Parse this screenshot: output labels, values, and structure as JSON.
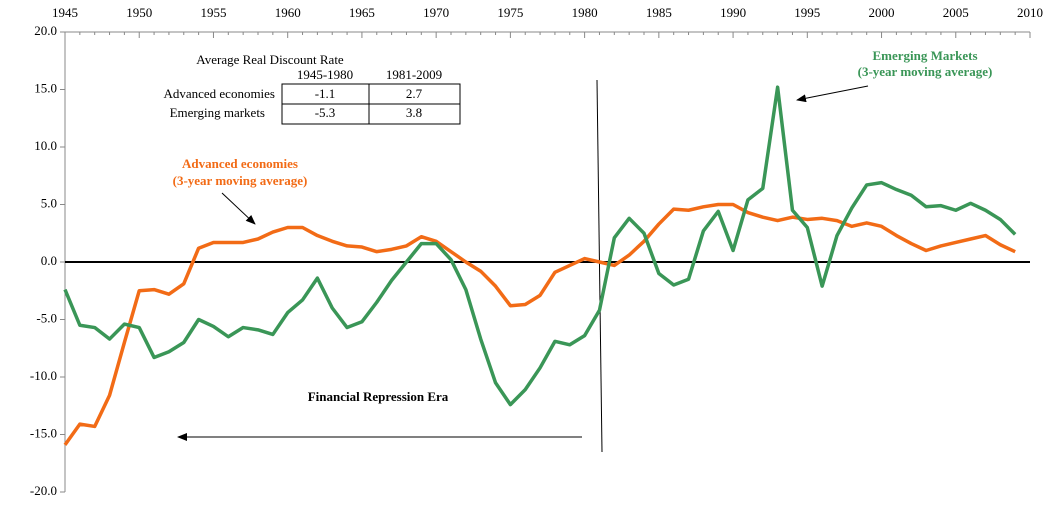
{
  "chart_data": {
    "type": "line",
    "x": [
      1945,
      1946,
      1947,
      1948,
      1949,
      1950,
      1951,
      1952,
      1953,
      1954,
      1955,
      1956,
      1957,
      1958,
      1959,
      1960,
      1961,
      1962,
      1963,
      1964,
      1965,
      1966,
      1967,
      1968,
      1969,
      1970,
      1971,
      1972,
      1973,
      1974,
      1975,
      1976,
      1977,
      1978,
      1979,
      1980,
      1981,
      1982,
      1983,
      1984,
      1985,
      1986,
      1987,
      1988,
      1989,
      1990,
      1991,
      1992,
      1993,
      1994,
      1995,
      1996,
      1997,
      1998,
      1999,
      2000,
      2001,
      2002,
      2003,
      2004,
      2005,
      2006,
      2007,
      2008,
      2009
    ],
    "series": [
      {
        "name": "Advanced economies",
        "color": "#f26b16",
        "values": [
          -15.9,
          -14.1,
          -14.3,
          -11.6,
          -7.0,
          -2.5,
          -2.4,
          -2.8,
          -1.9,
          1.2,
          1.7,
          1.7,
          1.7,
          2.0,
          2.6,
          3.0,
          3.0,
          2.3,
          1.8,
          1.4,
          1.3,
          0.9,
          1.1,
          1.4,
          2.2,
          1.8,
          0.9,
          0.0,
          -0.8,
          -2.1,
          -3.8,
          -3.7,
          -2.9,
          -0.9,
          -0.3,
          0.3,
          0.0,
          -0.3,
          0.6,
          1.8,
          3.3,
          4.6,
          4.5,
          4.8,
          5.0,
          5.0,
          4.3,
          3.9,
          3.6,
          3.9,
          3.7,
          3.8,
          3.6,
          3.1,
          3.4,
          3.1,
          2.3,
          1.6,
          1.0,
          1.4,
          1.7,
          2.0,
          2.3,
          1.5,
          0.9
        ]
      },
      {
        "name": "Emerging Markets",
        "color": "#3a9657",
        "values": [
          -2.4,
          -5.5,
          -5.7,
          -6.7,
          -5.4,
          -5.7,
          -8.3,
          -7.8,
          -7.0,
          -5.0,
          -5.6,
          -6.5,
          -5.7,
          -5.9,
          -6.3,
          -4.4,
          -3.3,
          -1.4,
          -4.0,
          -5.7,
          -5.2,
          -3.5,
          -1.6,
          0.0,
          1.6,
          1.6,
          0.2,
          -2.4,
          -6.7,
          -10.5,
          -12.4,
          -11.1,
          -9.2,
          -6.9,
          -7.2,
          -6.4,
          -4.2,
          2.1,
          3.8,
          2.5,
          -1.0,
          -2.0,
          -1.5,
          2.7,
          4.4,
          1.0,
          5.4,
          6.4,
          15.2,
          4.5,
          3.0,
          -2.1,
          2.3,
          4.7,
          6.7,
          6.9,
          6.3,
          5.8,
          4.8,
          4.9,
          4.5,
          5.1,
          4.5,
          3.7,
          2.4
        ]
      }
    ],
    "xlim": [
      1945,
      2010
    ],
    "xticks": [
      1945,
      1950,
      1955,
      1960,
      1965,
      1970,
      1975,
      1980,
      1985,
      1990,
      1995,
      2000,
      2005,
      2010
    ],
    "ylim": [
      -20,
      20
    ],
    "yticks": [
      {
        "value": -20,
        "label": "-20.0"
      },
      {
        "value": -15,
        "label": "-15.0"
      },
      {
        "value": -10,
        "label": "-10.0"
      },
      {
        "value": -5,
        "label": "-5.0"
      },
      {
        "value": 0,
        "label": "0.0"
      },
      {
        "value": 5,
        "label": "5.0"
      },
      {
        "value": 10,
        "label": "10.0"
      },
      {
        "value": 15,
        "label": "15.0"
      },
      {
        "value": 20,
        "label": "20.0"
      }
    ],
    "annotations": {
      "emerging": [
        "Emerging Markets",
        "(3-year moving average)"
      ],
      "advanced": [
        "Advanced economies",
        "(3-year moving average)"
      ],
      "era": "Financial Repression Era"
    },
    "table": {
      "title": "Average Real Discount Rate",
      "columns": [
        "1945-1980",
        "1981-2009"
      ],
      "rows": [
        [
          "Advanced economies",
          -1.1,
          2.7
        ],
        [
          "Emerging markets",
          -5.3,
          3.8
        ]
      ]
    }
  }
}
